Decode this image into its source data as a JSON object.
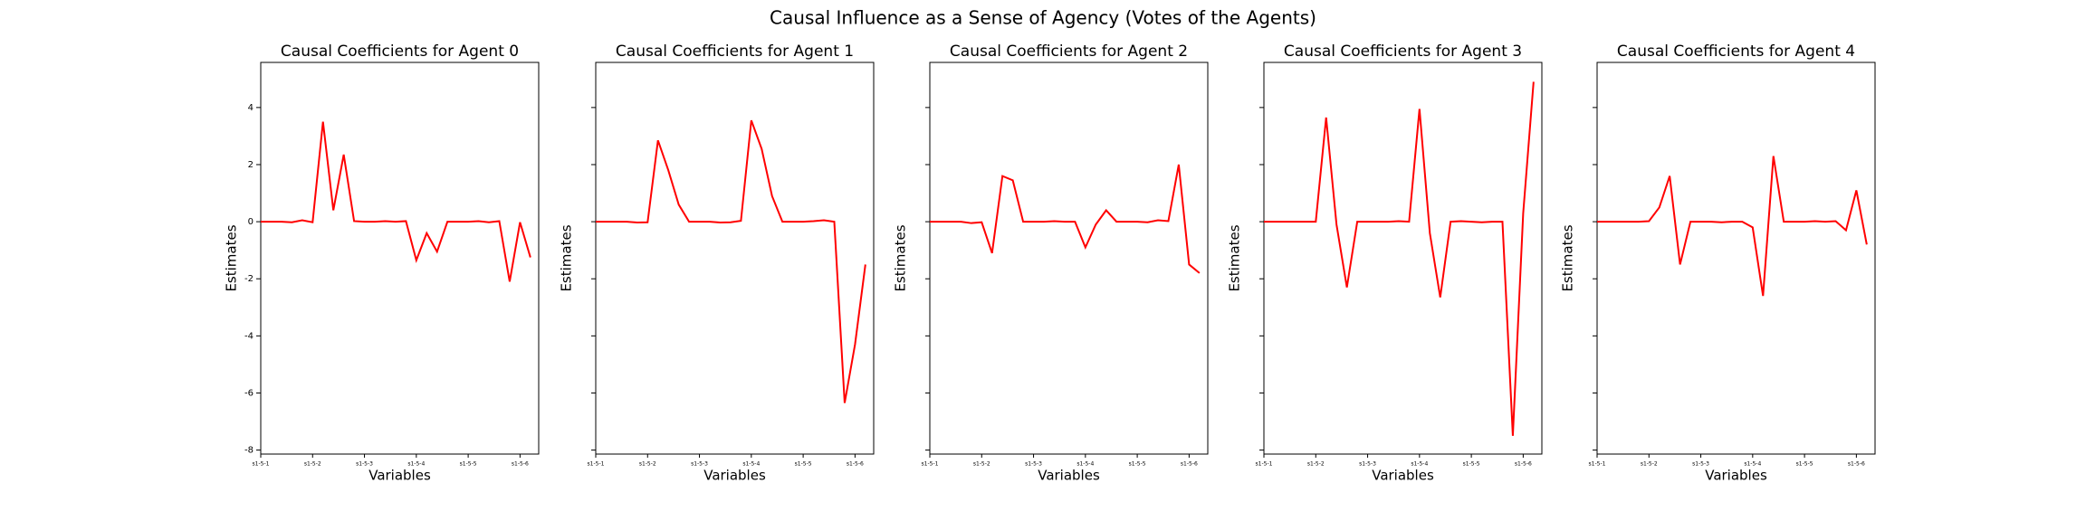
{
  "title": "Causal Influence as a Sense of Agency (Votes of the Agents)",
  "chart_data": [
    {
      "type": "line",
      "title": "Causal Coefficients for Agent 0",
      "x_label": "Variables",
      "y_label": "Estimates",
      "categories": [
        "s1-5-1",
        null,
        null,
        null,
        null,
        "s1-5-2",
        null,
        null,
        null,
        null,
        "s1-5-3",
        null,
        null,
        null,
        null,
        "s1-5-4",
        null,
        null,
        null,
        null,
        "s1-5-5",
        null,
        null,
        null,
        null,
        "s1-5-6",
        null
      ],
      "series": [
        {
          "name": "Agent 0",
          "color": "#ff0000",
          "values": [
            0,
            0,
            0,
            -0.02,
            0.05,
            -0.02,
            3.5,
            0.4,
            2.35,
            0.02,
            0,
            0,
            0.02,
            0,
            0.02,
            -1.35,
            -0.4,
            -1.05,
            0,
            0,
            0,
            0.02,
            -0.02,
            0.02,
            -2.1,
            -0.02,
            -1.25
          ]
        }
      ],
      "ylim": [
        -8.14,
        5.58
      ],
      "yticks": [
        -8,
        -6,
        -4,
        -2,
        0,
        2,
        4
      ]
    },
    {
      "type": "line",
      "title": "Causal Coefficients for Agent 1",
      "x_label": "Variables",
      "y_label": "Estimates",
      "categories": [
        "s1-5-1",
        null,
        null,
        null,
        null,
        "s1-5-2",
        null,
        null,
        null,
        null,
        "s1-5-3",
        null,
        null,
        null,
        null,
        "s1-5-4",
        null,
        null,
        null,
        null,
        "s1-5-5",
        null,
        null,
        null,
        null,
        "s1-5-6",
        null
      ],
      "series": [
        {
          "name": "Agent 1",
          "color": "#ff0000",
          "values": [
            0,
            0,
            0,
            0,
            -0.03,
            -0.02,
            2.85,
            1.8,
            0.6,
            0,
            0,
            0,
            -0.03,
            -0.02,
            0.03,
            3.55,
            2.55,
            0.9,
            0,
            0,
            0,
            0.02,
            0.05,
            0,
            -6.35,
            -4.3,
            -1.5
          ]
        }
      ],
      "ylim": [
        -8.14,
        5.58
      ],
      "yticks": [
        -8,
        -6,
        -4,
        -2,
        0,
        2,
        4
      ]
    },
    {
      "type": "line",
      "title": "Causal Coefficients for Agent 2",
      "x_label": "Variables",
      "y_label": "Estimates",
      "categories": [
        "s1-5-1",
        null,
        null,
        null,
        null,
        "s1-5-2",
        null,
        null,
        null,
        null,
        "s1-5-3",
        null,
        null,
        null,
        null,
        "s1-5-4",
        null,
        null,
        null,
        null,
        "s1-5-5",
        null,
        null,
        null,
        null,
        "s1-5-6",
        null
      ],
      "series": [
        {
          "name": "Agent 2",
          "color": "#ff0000",
          "values": [
            0,
            0,
            0,
            0,
            -0.05,
            -0.02,
            -1.1,
            1.6,
            1.45,
            0,
            0,
            0,
            0.02,
            0,
            0,
            -0.9,
            -0.1,
            0.4,
            0,
            0,
            0,
            -0.02,
            0.05,
            0.02,
            2.0,
            -1.5,
            -1.8
          ]
        }
      ],
      "ylim": [
        -8.14,
        5.58
      ],
      "yticks": [
        -8,
        -6,
        -4,
        -2,
        0,
        2,
        4
      ]
    },
    {
      "type": "line",
      "title": "Causal Coefficients for Agent 3",
      "x_label": "Variables",
      "y_label": "Estimates",
      "categories": [
        "s1-5-1",
        null,
        null,
        null,
        null,
        "s1-5-2",
        null,
        null,
        null,
        null,
        "s1-5-3",
        null,
        null,
        null,
        null,
        "s1-5-4",
        null,
        null,
        null,
        null,
        "s1-5-5",
        null,
        null,
        null,
        null,
        "s1-5-6",
        null
      ],
      "series": [
        {
          "name": "Agent 3",
          "color": "#ff0000",
          "values": [
            0,
            0,
            0,
            0,
            0,
            0,
            3.65,
            -0.1,
            -2.3,
            0,
            0,
            0,
            0,
            0.02,
            0,
            3.95,
            -0.4,
            -2.65,
            0,
            0.02,
            0,
            -0.02,
            0,
            0,
            -7.5,
            0.3,
            4.9
          ]
        }
      ],
      "ylim": [
        -8.14,
        5.58
      ],
      "yticks": [
        -8,
        -6,
        -4,
        -2,
        0,
        2,
        4
      ]
    },
    {
      "type": "line",
      "title": "Causal Coefficients for Agent 4",
      "x_label": "Variables",
      "y_label": "Estimates",
      "categories": [
        "s1-5-1",
        null,
        null,
        null,
        null,
        "s1-5-2",
        null,
        null,
        null,
        null,
        "s1-5-3",
        null,
        null,
        null,
        null,
        "s1-5-4",
        null,
        null,
        null,
        null,
        "s1-5-5",
        null,
        null,
        null,
        null,
        "s1-5-6",
        null
      ],
      "series": [
        {
          "name": "Agent 4",
          "color": "#ff0000",
          "values": [
            0,
            0,
            0,
            0,
            0,
            0.02,
            0.5,
            1.6,
            -1.5,
            0,
            0,
            0,
            -0.02,
            0,
            0,
            -0.2,
            -2.6,
            2.3,
            0,
            0,
            0,
            0.02,
            0,
            0.02,
            -0.3,
            1.1,
            -0.8
          ]
        }
      ],
      "ylim": [
        -8.14,
        5.58
      ],
      "yticks": [
        -8,
        -6,
        -4,
        -2,
        0,
        2,
        4
      ]
    }
  ]
}
